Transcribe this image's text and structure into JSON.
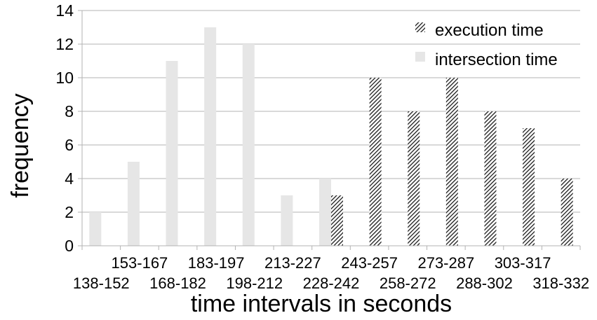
{
  "chart_data": {
    "type": "bar",
    "categories": [
      "138-152",
      "153-167",
      "168-182",
      "183-197",
      "198-212",
      "213-227",
      "228-242",
      "243-257",
      "258-272",
      "273-287",
      "288-302",
      "303-317",
      "318-332"
    ],
    "series": [
      {
        "name": "intersection time",
        "values": [
          2,
          5,
          11,
          13,
          12,
          3,
          4,
          0,
          0,
          0,
          0,
          0,
          0
        ],
        "color": "#e6e6e6",
        "pattern": "solid"
      },
      {
        "name": "execution time",
        "values": [
          0,
          0,
          0,
          0,
          0,
          0,
          3,
          10,
          8,
          10,
          8,
          7,
          4
        ],
        "color": "#1a1a1a",
        "pattern": "diagonal-hatch"
      }
    ],
    "title": "",
    "xlabel": "time intervals in seconds",
    "ylabel": "frequency",
    "ylim": [
      0,
      14
    ],
    "yticks": [
      0,
      2,
      4,
      6,
      8,
      10,
      12,
      14
    ],
    "grid": true,
    "legend_position": "top-right"
  }
}
